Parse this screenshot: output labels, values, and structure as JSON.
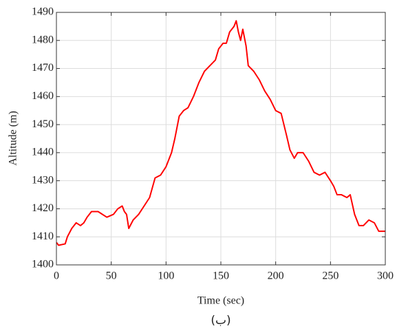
{
  "chart_data": {
    "type": "line",
    "xlabel": "Time (sec)",
    "ylabel": "Altitude (m)",
    "caption": "(ب)",
    "x": [
      0,
      2,
      8,
      10,
      14,
      18,
      22,
      25,
      28,
      32,
      38,
      42,
      46,
      52,
      56,
      60,
      62,
      64,
      66,
      70,
      75,
      80,
      85,
      90,
      95,
      100,
      105,
      108,
      112,
      116,
      120,
      125,
      130,
      135,
      140,
      145,
      148,
      152,
      155,
      158,
      162,
      164,
      166,
      168,
      170,
      173,
      175,
      180,
      185,
      190,
      195,
      200,
      205,
      210,
      213,
      217,
      220,
      225,
      230,
      235,
      240,
      245,
      250,
      253,
      256,
      260,
      265,
      268,
      272,
      276,
      280,
      285,
      290,
      294,
      300
    ],
    "series": [
      {
        "color": "#ff0000",
        "values": [
          1408,
          1407,
          1407.5,
          1410,
          1413,
          1415,
          1414,
          1415,
          1417,
          1419,
          1419,
          1418,
          1417,
          1418,
          1420,
          1421,
          1419,
          1418,
          1413,
          1416,
          1418,
          1421,
          1424,
          1431,
          1432,
          1435,
          1440,
          1445,
          1453,
          1455,
          1456,
          1460,
          1465,
          1469,
          1471,
          1473,
          1477,
          1479,
          1479,
          1483,
          1485,
          1487,
          1483,
          1480,
          1484,
          1478,
          1471,
          1469,
          1466,
          1462,
          1459,
          1455,
          1454,
          1446,
          1441,
          1438,
          1440,
          1440,
          1437,
          1433,
          1432,
          1433,
          1430,
          1428,
          1425,
          1425,
          1424,
          1425,
          1418,
          1414,
          1414,
          1416,
          1415,
          1412,
          1412
        ]
      }
    ],
    "xlim": [
      0,
      300
    ],
    "xticks": [
      0,
      50,
      100,
      150,
      200,
      250,
      300
    ],
    "ylim": [
      1400,
      1490
    ],
    "yticks": [
      1400,
      1410,
      1420,
      1430,
      1440,
      1450,
      1460,
      1470,
      1480,
      1490
    ],
    "grid": true
  }
}
